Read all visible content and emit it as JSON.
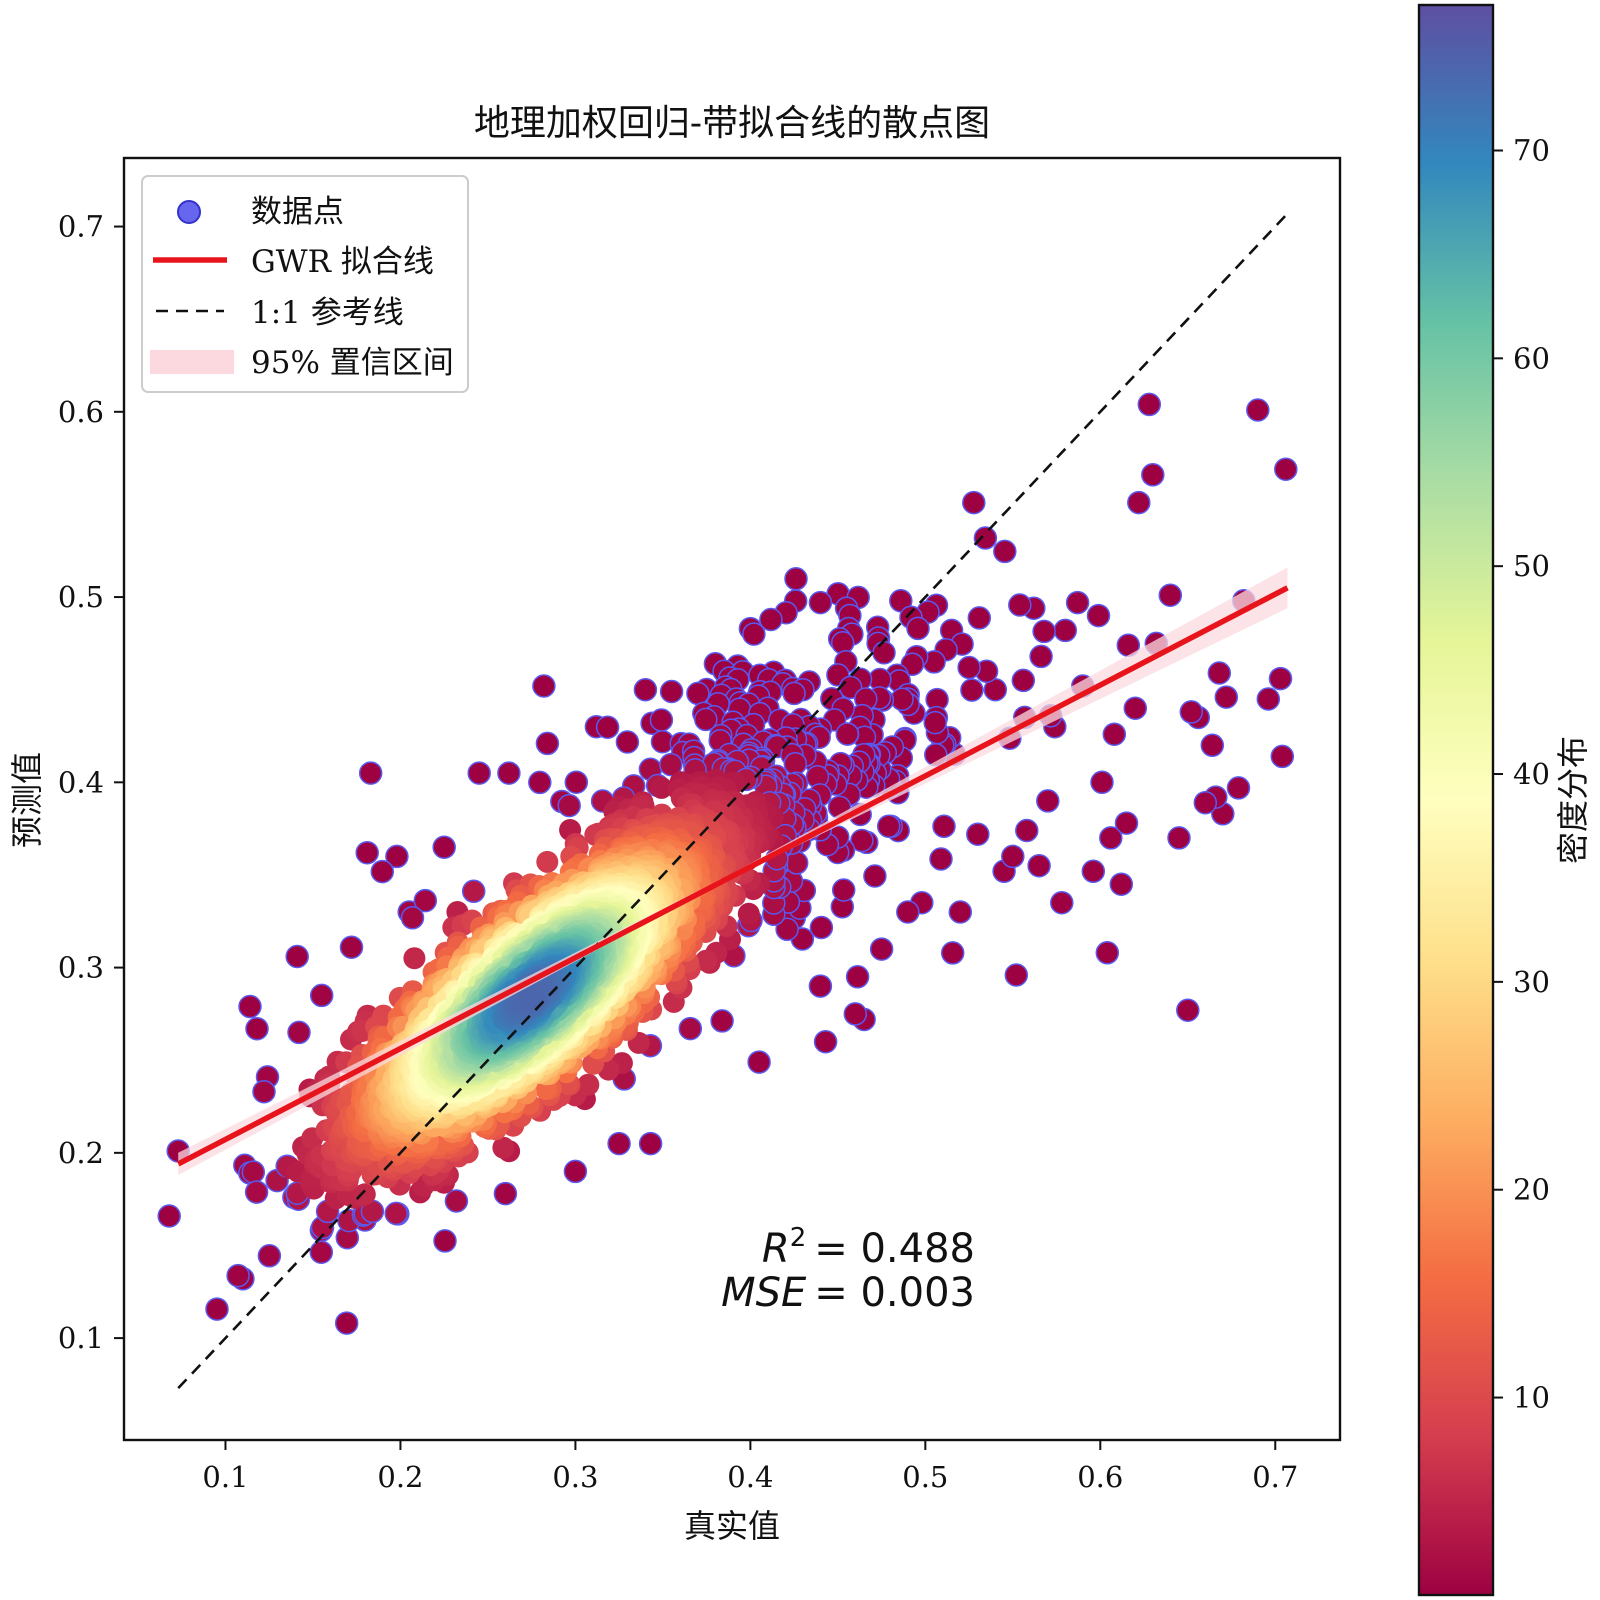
{
  "chart_data": {
    "type": "scatter",
    "title": "地理加权回归-带拟合线的散点图",
    "xlabel": "真实值",
    "ylabel": "预测值",
    "xlim": [
      0.042,
      0.737
    ],
    "ylim": [
      0.045,
      0.737
    ],
    "xticks": [
      "0.1",
      "0.2",
      "0.3",
      "0.4",
      "0.5",
      "0.6",
      "0.7"
    ],
    "yticks": [
      "0.1",
      "0.2",
      "0.3",
      "0.4",
      "0.5",
      "0.6",
      "0.7"
    ],
    "grid": false,
    "legend": {
      "placement": "upper-left",
      "entries": [
        {
          "label": "数据点",
          "kind": "marker",
          "color": "#5a5af0"
        },
        {
          "label": "GWR 拟合线",
          "kind": "line",
          "color": "#e8141b"
        },
        {
          "label": "1:1 参考线",
          "kind": "dashed-line",
          "color": "#111111"
        },
        {
          "label": "95% 置信区间",
          "kind": "band",
          "color": "#fbd9df"
        }
      ]
    },
    "fit_line": {
      "x": [
        0.073,
        0.707
      ],
      "y": [
        0.194,
        0.505
      ],
      "color": "#e8141b"
    },
    "reference_line": {
      "x": [
        0.073,
        0.707
      ],
      "y": [
        0.073,
        0.707
      ]
    },
    "confidence_band": {
      "x": [
        0.073,
        0.39,
        0.707
      ],
      "lower": [
        0.188,
        0.349,
        0.494
      ],
      "upper": [
        0.2,
        0.351,
        0.516
      ]
    },
    "annotation": {
      "r2_label": "R",
      "r2_sup": "2",
      "r2_value": "= 0.488",
      "mse_label": "MSE",
      "mse_value": "= 0.003"
    },
    "point_color": "density",
    "point_edge_color": "#5a5af0",
    "cluster": {
      "center_x": 0.275,
      "center_y": 0.285,
      "count": 2600
    },
    "outliers": [
      [
        0.073,
        0.201
      ],
      [
        0.114,
        0.279
      ],
      [
        0.118,
        0.267
      ],
      [
        0.124,
        0.241
      ],
      [
        0.122,
        0.233
      ],
      [
        0.141,
        0.306
      ],
      [
        0.142,
        0.265
      ],
      [
        0.155,
        0.285
      ],
      [
        0.161,
        0.225
      ],
      [
        0.172,
        0.311
      ],
      [
        0.178,
        0.177
      ],
      [
        0.181,
        0.362
      ],
      [
        0.183,
        0.405
      ],
      [
        0.198,
        0.36
      ],
      [
        0.205,
        0.33
      ],
      [
        0.213,
        0.182
      ],
      [
        0.225,
        0.365
      ],
      [
        0.232,
        0.174
      ],
      [
        0.245,
        0.405
      ],
      [
        0.26,
        0.178
      ],
      [
        0.262,
        0.405
      ],
      [
        0.282,
        0.452
      ],
      [
        0.284,
        0.421
      ],
      [
        0.3,
        0.19
      ],
      [
        0.312,
        0.43
      ],
      [
        0.325,
        0.205
      ],
      [
        0.343,
        0.205
      ],
      [
        0.34,
        0.45
      ],
      [
        0.355,
        0.449
      ],
      [
        0.37,
        0.448
      ],
      [
        0.38,
        0.464
      ],
      [
        0.385,
        0.46
      ],
      [
        0.388,
        0.415
      ],
      [
        0.392,
        0.445
      ],
      [
        0.4,
        0.483
      ],
      [
        0.402,
        0.48
      ],
      [
        0.405,
        0.249
      ],
      [
        0.41,
        0.44
      ],
      [
        0.42,
        0.455
      ],
      [
        0.425,
        0.448
      ],
      [
        0.43,
        0.45
      ],
      [
        0.44,
        0.497
      ],
      [
        0.44,
        0.29
      ],
      [
        0.443,
        0.26
      ],
      [
        0.45,
        0.458
      ],
      [
        0.455,
        0.494
      ],
      [
        0.458,
        0.48
      ],
      [
        0.46,
        0.275
      ],
      [
        0.465,
        0.272
      ],
      [
        0.466,
        0.445
      ],
      [
        0.473,
        0.475
      ],
      [
        0.475,
        0.31
      ],
      [
        0.486,
        0.498
      ],
      [
        0.49,
        0.445
      ],
      [
        0.49,
        0.33
      ],
      [
        0.498,
        0.335
      ],
      [
        0.505,
        0.465
      ],
      [
        0.51,
        0.42
      ],
      [
        0.515,
        0.482
      ],
      [
        0.52,
        0.33
      ],
      [
        0.525,
        0.462
      ],
      [
        0.53,
        0.372
      ],
      [
        0.535,
        0.46
      ],
      [
        0.54,
        0.45
      ],
      [
        0.545,
        0.352
      ],
      [
        0.55,
        0.36
      ],
      [
        0.552,
        0.296
      ],
      [
        0.556,
        0.455
      ],
      [
        0.558,
        0.374
      ],
      [
        0.562,
        0.494
      ],
      [
        0.565,
        0.355
      ],
      [
        0.57,
        0.39
      ],
      [
        0.574,
        0.43
      ],
      [
        0.578,
        0.335
      ],
      [
        0.58,
        0.482
      ],
      [
        0.587,
        0.497
      ],
      [
        0.59,
        0.452
      ],
      [
        0.596,
        0.352
      ],
      [
        0.599,
        0.49
      ],
      [
        0.601,
        0.4
      ],
      [
        0.604,
        0.308
      ],
      [
        0.606,
        0.37
      ],
      [
        0.608,
        0.426
      ],
      [
        0.612,
        0.345
      ],
      [
        0.615,
        0.378
      ],
      [
        0.616,
        0.474
      ],
      [
        0.62,
        0.44
      ],
      [
        0.622,
        0.551
      ],
      [
        0.628,
        0.604
      ],
      [
        0.63,
        0.566
      ],
      [
        0.632,
        0.475
      ],
      [
        0.64,
        0.501
      ],
      [
        0.645,
        0.37
      ],
      [
        0.65,
        0.277
      ],
      [
        0.652,
        0.438
      ],
      [
        0.656,
        0.435
      ],
      [
        0.66,
        0.389
      ],
      [
        0.664,
        0.42
      ],
      [
        0.666,
        0.392
      ],
      [
        0.668,
        0.459
      ],
      [
        0.67,
        0.383
      ],
      [
        0.672,
        0.446
      ],
      [
        0.679,
        0.397
      ],
      [
        0.682,
        0.498
      ],
      [
        0.69,
        0.601
      ],
      [
        0.696,
        0.445
      ],
      [
        0.703,
        0.456
      ],
      [
        0.704,
        0.414
      ],
      [
        0.706,
        0.569
      ]
    ],
    "colorbar": {
      "label": "密度分布",
      "range": [
        0.5,
        77
      ],
      "ticks": [
        "10",
        "20",
        "30",
        "40",
        "50",
        "60",
        "70"
      ]
    }
  }
}
